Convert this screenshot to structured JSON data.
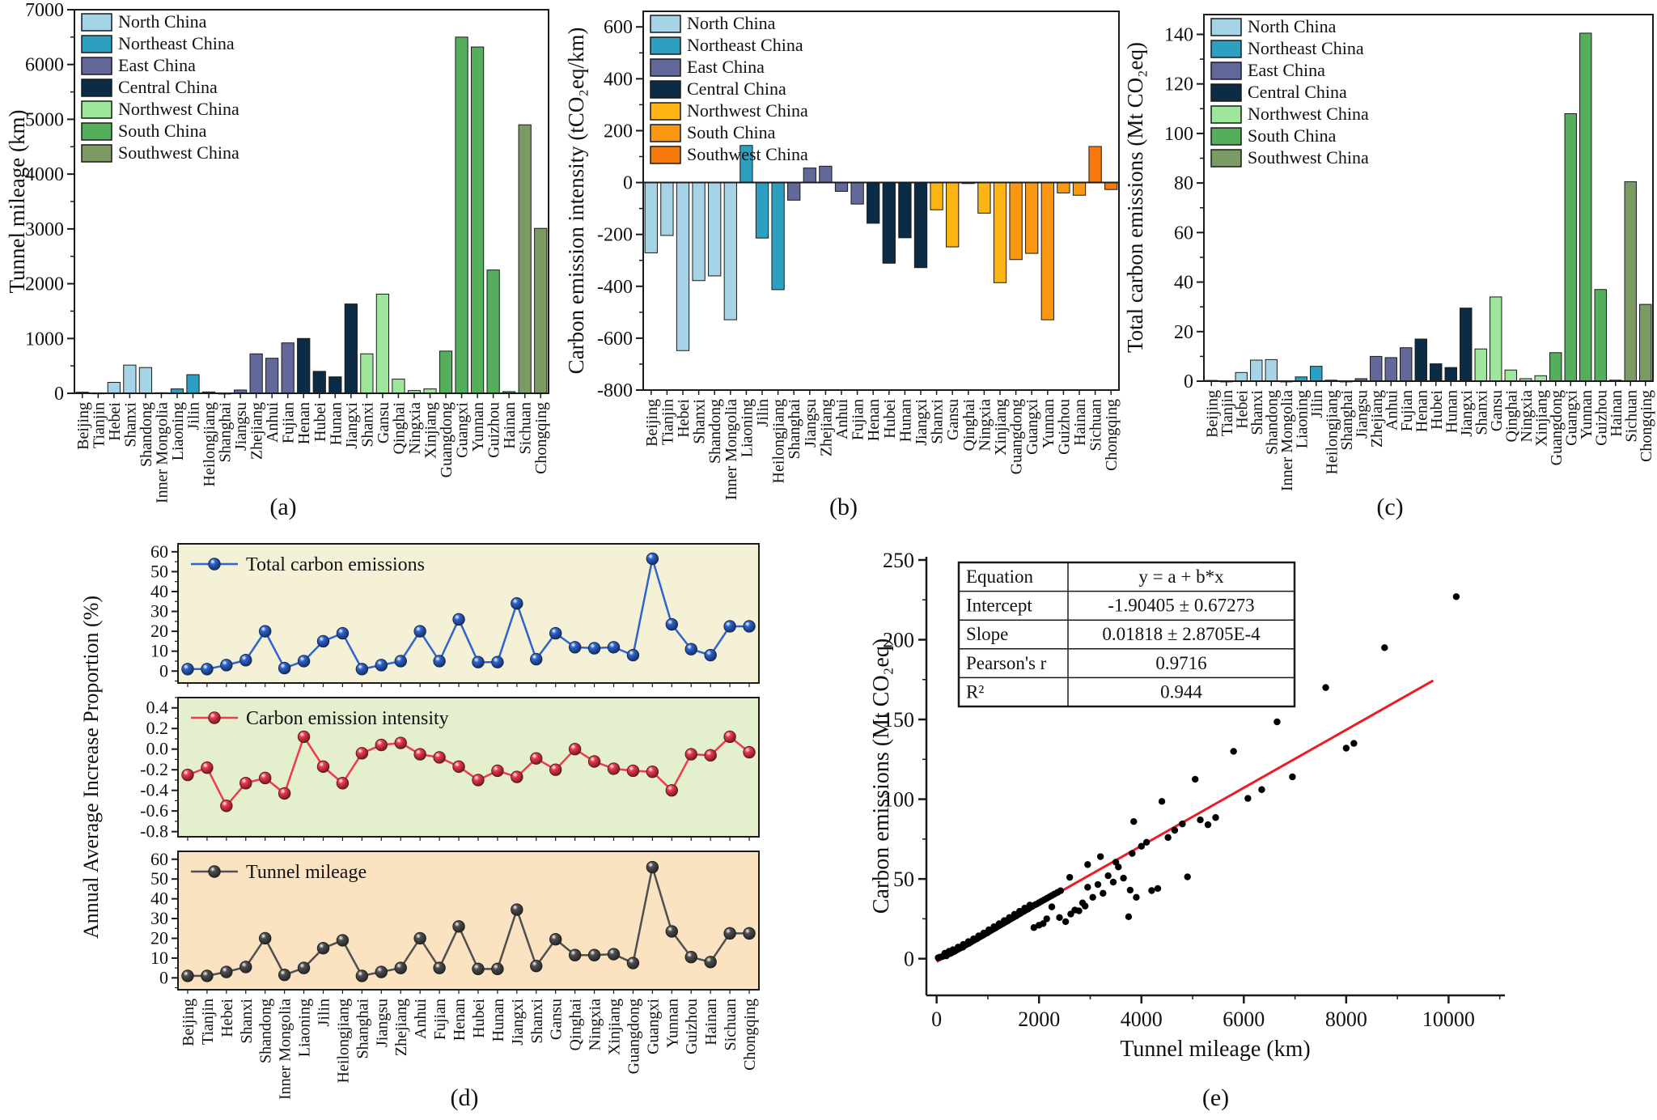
{
  "regions": [
    "North China",
    "Northeast China",
    "East China",
    "Central China",
    "Northwest China",
    "South China",
    "Southwest China"
  ],
  "palettes": {
    "cool": [
      "#a6d4e6",
      "#2d9fc1",
      "#62699a",
      "#0c2b45",
      "#9de69b",
      "#54ae5c",
      "#7c9a63"
    ],
    "warm": [
      "#a6d4e6",
      "#2d9fc1",
      "#62699a",
      "#0c2b45",
      "#fcb515",
      "#fb9712",
      "#f8790e"
    ]
  },
  "provinces": [
    "Beijing",
    "Tianjin",
    "Hebei",
    "Shanxi",
    "Shandong",
    "Inner Mongolia",
    "Liaoning",
    "Jilin",
    "Heilongjiang",
    "Shanghai",
    "Jiangsu",
    "Zhejiang",
    "Anhui",
    "Fujian",
    "Henan",
    "Hubei",
    "Hunan",
    "Jiangxi",
    "Shanxi",
    "Gansu",
    "Qinghai",
    "Ningxia",
    "Xinjiang",
    "Guangdong",
    "Guangxi",
    "Yunnan",
    "Guizhou",
    "Hainan",
    "Sichuan",
    "Chongqing"
  ],
  "province_region_index": [
    0,
    0,
    0,
    0,
    0,
    0,
    1,
    1,
    1,
    2,
    2,
    2,
    2,
    2,
    3,
    3,
    3,
    3,
    4,
    4,
    4,
    4,
    4,
    5,
    5,
    5,
    5,
    5,
    6,
    6
  ],
  "chart_data": {
    "panel_a": {
      "type": "bar",
      "caption": "(a)",
      "ylabel": "Tunnel mileage (km)",
      "palette": "cool",
      "ylim": [
        0,
        7000
      ],
      "yticks": [
        0,
        1000,
        2000,
        3000,
        4000,
        5000,
        6000,
        7000
      ],
      "yminor": 500,
      "values": [
        20,
        8,
        200,
        515,
        470,
        10,
        80,
        340,
        25,
        5,
        60,
        720,
        640,
        920,
        1000,
        400,
        300,
        1630,
        720,
        1810,
        260,
        50,
        80,
        770,
        6500,
        6320,
        2250,
        30,
        4900,
        3010
      ]
    },
    "panel_b": {
      "type": "bar",
      "caption": "(b)",
      "ylabel": "Carbon emission intensity (tCO₂eq/km)",
      "palette": "warm",
      "ylim": [
        -800,
        660
      ],
      "yticks": [
        -800,
        -600,
        -400,
        -200,
        0,
        200,
        400,
        600
      ],
      "yminor": 100,
      "values": [
        -271,
        -204,
        -648,
        -378,
        -360,
        -529,
        143,
        -214,
        -413,
        -68,
        56,
        63,
        -34,
        -83,
        -157,
        -311,
        -213,
        -328,
        -105,
        -248,
        -2,
        -118,
        -386,
        -297,
        -273,
        -529,
        -40,
        -49,
        139,
        -27
      ]
    },
    "panel_c": {
      "type": "bar",
      "caption": "(c)",
      "ylabel": "Total carbon emissions (Mt CO₂eq)",
      "palette": "cool",
      "ylim": [
        0,
        148
      ],
      "yticks": [
        0,
        20,
        40,
        60,
        80,
        100,
        120,
        140
      ],
      "yminor": 10,
      "values": [
        0.3,
        0.1,
        3.5,
        8.5,
        8.7,
        0.1,
        1.7,
        6.0,
        0.4,
        0.1,
        1.0,
        10.0,
        9.5,
        13.5,
        17.0,
        7.0,
        5.5,
        29.5,
        13.0,
        34.0,
        4.5,
        1.0,
        2.2,
        11.5,
        108.0,
        140.5,
        37.0,
        0.4,
        80.5,
        31.0
      ]
    },
    "panel_d": {
      "type": "line",
      "caption": "(d)",
      "ylabel": "Annual Average Increase Proportion (%)",
      "subpanels": [
        {
          "legend": "Total carbon emissions",
          "color": "#2f63cf",
          "bg": "#f4f1d7",
          "ylim": [
            -6,
            64
          ],
          "yticks": [
            "0",
            "10",
            "20",
            "30",
            "40",
            "50",
            "60"
          ],
          "yminor": 5,
          "values": [
            1,
            1,
            3,
            5.5,
            20,
            1.5,
            5,
            15,
            19,
            1,
            3,
            5,
            20,
            5,
            26,
            4.5,
            4.5,
            34,
            6,
            19,
            12,
            11.5,
            12,
            8,
            56.5,
            23.5,
            11,
            8,
            22.5,
            22.5
          ]
        },
        {
          "legend": "Carbon emission intensity",
          "color": "#ee3a4d",
          "bg": "#e4f0cd",
          "ylim": [
            -0.85,
            0.5
          ],
          "yticks": [
            "0.4",
            "0.2",
            "0.0",
            "-0.2",
            "-0.4",
            "-0.6",
            "-0.8"
          ],
          "yminor": 0.1,
          "values": [
            -0.25,
            -0.18,
            -0.55,
            -0.33,
            -0.28,
            -0.43,
            0.12,
            -0.17,
            -0.33,
            -0.04,
            0.04,
            0.06,
            -0.05,
            -0.08,
            -0.17,
            -0.3,
            -0.21,
            -0.27,
            -0.09,
            -0.2,
            0.0,
            -0.12,
            -0.19,
            -0.21,
            -0.22,
            -0.4,
            -0.05,
            -0.06,
            0.12,
            -0.03
          ]
        },
        {
          "legend": "Tunnel mileage",
          "color": "#4f4f4f",
          "bg": "#fbe2c1",
          "ylim": [
            -6,
            64
          ],
          "yticks": [
            "0",
            "10",
            "20",
            "30",
            "40",
            "50",
            "60"
          ],
          "yminor": 5,
          "values": [
            1,
            1,
            3,
            5.5,
            20,
            1.5,
            5,
            15,
            19,
            1,
            3,
            5,
            20,
            5,
            26,
            4.5,
            4.5,
            34.5,
            6,
            19.5,
            11.5,
            11.5,
            12,
            7.5,
            56,
            23.5,
            10.5,
            8,
            22.5,
            22.5
          ]
        }
      ]
    },
    "panel_e": {
      "type": "scatter",
      "caption": "(e)",
      "xlabel": "Tunnel mileage (km)",
      "ylabel": "Carbon emissions (Mt CO₂eq)",
      "xlim": [
        -200,
        11100
      ],
      "ylim": [
        -23,
        252
      ],
      "xticks": [
        0,
        2000,
        4000,
        6000,
        8000,
        10000
      ],
      "yticks": [
        0,
        50,
        100,
        150,
        200,
        250
      ],
      "xminor": 1000,
      "yminor": 25,
      "point_color": "#000000",
      "fit_line": {
        "x1": 0,
        "y1": -1.9,
        "x2": 9700,
        "y2": 174.4,
        "color": "#ed1c24"
      },
      "stats_table": [
        [
          "Equation",
          "y = a + b*x"
        ],
        [
          "Intercept",
          "-1.90405 ± 0.67273"
        ],
        [
          "Slope",
          "0.01818 ± 2.8705E-4"
        ],
        [
          "Pearson's r",
          "0.9716"
        ],
        [
          "R²",
          "0.944"
        ]
      ],
      "points": [
        [
          30,
          0.6
        ],
        [
          70,
          1.0
        ],
        [
          110,
          1.3
        ],
        [
          150,
          2.1
        ],
        [
          190,
          1.8
        ],
        [
          230,
          2.9
        ],
        [
          270,
          3.3
        ],
        [
          310,
          4.0
        ],
        [
          350,
          4.6
        ],
        [
          390,
          5.4
        ],
        [
          430,
          6.1
        ],
        [
          470,
          6.8
        ],
        [
          510,
          7.2
        ],
        [
          550,
          8.3
        ],
        [
          590,
          9.0
        ],
        [
          630,
          9.6
        ],
        [
          670,
          10.4
        ],
        [
          710,
          11.2
        ],
        [
          750,
          11.9
        ],
        [
          790,
          12.5
        ],
        [
          830,
          13.4
        ],
        [
          870,
          14.1
        ],
        [
          910,
          14.8
        ],
        [
          950,
          15.6
        ],
        [
          990,
          16.2
        ],
        [
          1030,
          17.1
        ],
        [
          1070,
          17.8
        ],
        [
          1110,
          18.6
        ],
        [
          1150,
          19.2
        ],
        [
          1190,
          20.1
        ],
        [
          1230,
          20.8
        ],
        [
          1270,
          21.6
        ],
        [
          1310,
          22.3
        ],
        [
          1350,
          23.1
        ],
        [
          1390,
          23.7
        ],
        [
          1430,
          24.6
        ],
        [
          1470,
          25.3
        ],
        [
          1510,
          26.1
        ],
        [
          1550,
          26.7
        ],
        [
          1590,
          27.6
        ],
        [
          1630,
          28.3
        ],
        [
          1670,
          29.1
        ],
        [
          1710,
          29.8
        ],
        [
          1750,
          30.6
        ],
        [
          1790,
          31.2
        ],
        [
          1830,
          32.1
        ],
        [
          1870,
          32.8
        ],
        [
          1910,
          33.6
        ],
        [
          1950,
          34.2
        ],
        [
          2000,
          35.1
        ],
        [
          2050,
          36.0
        ],
        [
          2100,
          36.9
        ],
        [
          2150,
          37.8
        ],
        [
          2200,
          38.7
        ],
        [
          2250,
          39.6
        ],
        [
          2300,
          40.5
        ],
        [
          2360,
          41.5
        ],
        [
          2420,
          42.6
        ],
        [
          160,
          3.4
        ],
        [
          240,
          4.6
        ],
        [
          320,
          5.6
        ],
        [
          420,
          7.3
        ],
        [
          520,
          8.9
        ],
        [
          620,
          10.7
        ],
        [
          720,
          12.4
        ],
        [
          820,
          14.3
        ],
        [
          920,
          16.1
        ],
        [
          1020,
          18.1
        ],
        [
          1120,
          20.0
        ],
        [
          1220,
          21.9
        ],
        [
          1320,
          23.9
        ],
        [
          1420,
          25.8
        ],
        [
          1520,
          27.8
        ],
        [
          1620,
          29.7
        ],
        [
          1720,
          31.7
        ],
        [
          1820,
          33.6
        ],
        [
          1900,
          19.5
        ],
        [
          2000,
          21.0
        ],
        [
          2080,
          22.0
        ],
        [
          2150,
          25.0
        ],
        [
          2250,
          32.5
        ],
        [
          2400,
          25.8
        ],
        [
          2520,
          23.2
        ],
        [
          2620,
          28.0
        ],
        [
          2700,
          30.5
        ],
        [
          2780,
          30.0
        ],
        [
          2900,
          33.0
        ],
        [
          3750,
          26.3
        ],
        [
          2850,
          35.0
        ],
        [
          2950,
          44.8
        ],
        [
          3050,
          38.5
        ],
        [
          3150,
          46.5
        ],
        [
          3250,
          41.0
        ],
        [
          3350,
          52.0
        ],
        [
          3450,
          48.0
        ],
        [
          3550,
          57.5
        ],
        [
          3650,
          50.5
        ],
        [
          3780,
          43.0
        ],
        [
          3900,
          38.5
        ],
        [
          2600,
          51.0
        ],
        [
          2950,
          59.0
        ],
        [
          3200,
          64.0
        ],
        [
          3500,
          60.5
        ],
        [
          3820,
          66.0
        ],
        [
          4000,
          70.5
        ],
        [
          4100,
          73.0
        ],
        [
          4200,
          42.7
        ],
        [
          4320,
          44.0
        ],
        [
          3850,
          86.0
        ],
        [
          4400,
          98.6
        ],
        [
          4520,
          76.0
        ],
        [
          4650,
          80.5
        ],
        [
          4800,
          84.5
        ],
        [
          4900,
          51.3
        ],
        [
          5050,
          112.5
        ],
        [
          5150,
          87.0
        ],
        [
          5300,
          84.0
        ],
        [
          5450,
          88.5
        ],
        [
          5800,
          130.0
        ],
        [
          6080,
          100.5
        ],
        [
          6350,
          106.0
        ],
        [
          6650,
          148.5
        ],
        [
          6950,
          114.0
        ],
        [
          7600,
          170.0
        ],
        [
          8000,
          132.0
        ],
        [
          8150,
          135.0
        ],
        [
          8750,
          195.0
        ],
        [
          10150,
          227.0
        ]
      ]
    }
  }
}
